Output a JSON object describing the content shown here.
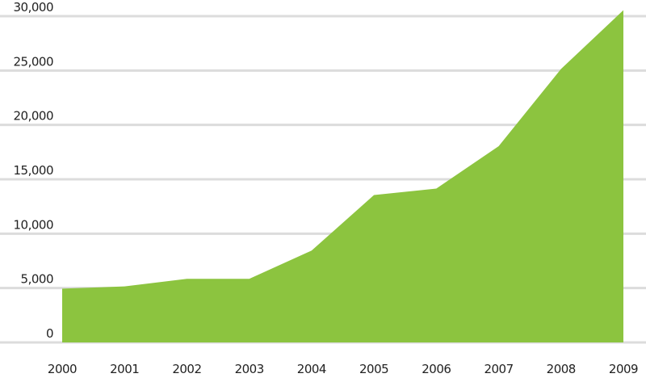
{
  "chart_data": {
    "type": "area",
    "title": "",
    "xlabel": "",
    "ylabel": "",
    "categories": [
      "2000",
      "2001",
      "2002",
      "2003",
      "2004",
      "2005",
      "2006",
      "2007",
      "2008",
      "2009"
    ],
    "values": [
      4800,
      5000,
      5700,
      5700,
      8300,
      13400,
      14000,
      17900,
      25000,
      30400
    ],
    "ylim": [
      0,
      30000
    ],
    "yticks": [
      0,
      5000,
      10000,
      15000,
      20000,
      25000,
      30000
    ],
    "ytick_labels": [
      "0",
      "5,000",
      "10,000",
      "15,000",
      "20,000",
      "25,000",
      "30,000"
    ],
    "grid": true,
    "colors": {
      "fill": "#8cc43f",
      "grid": "#dcdcdc"
    }
  }
}
